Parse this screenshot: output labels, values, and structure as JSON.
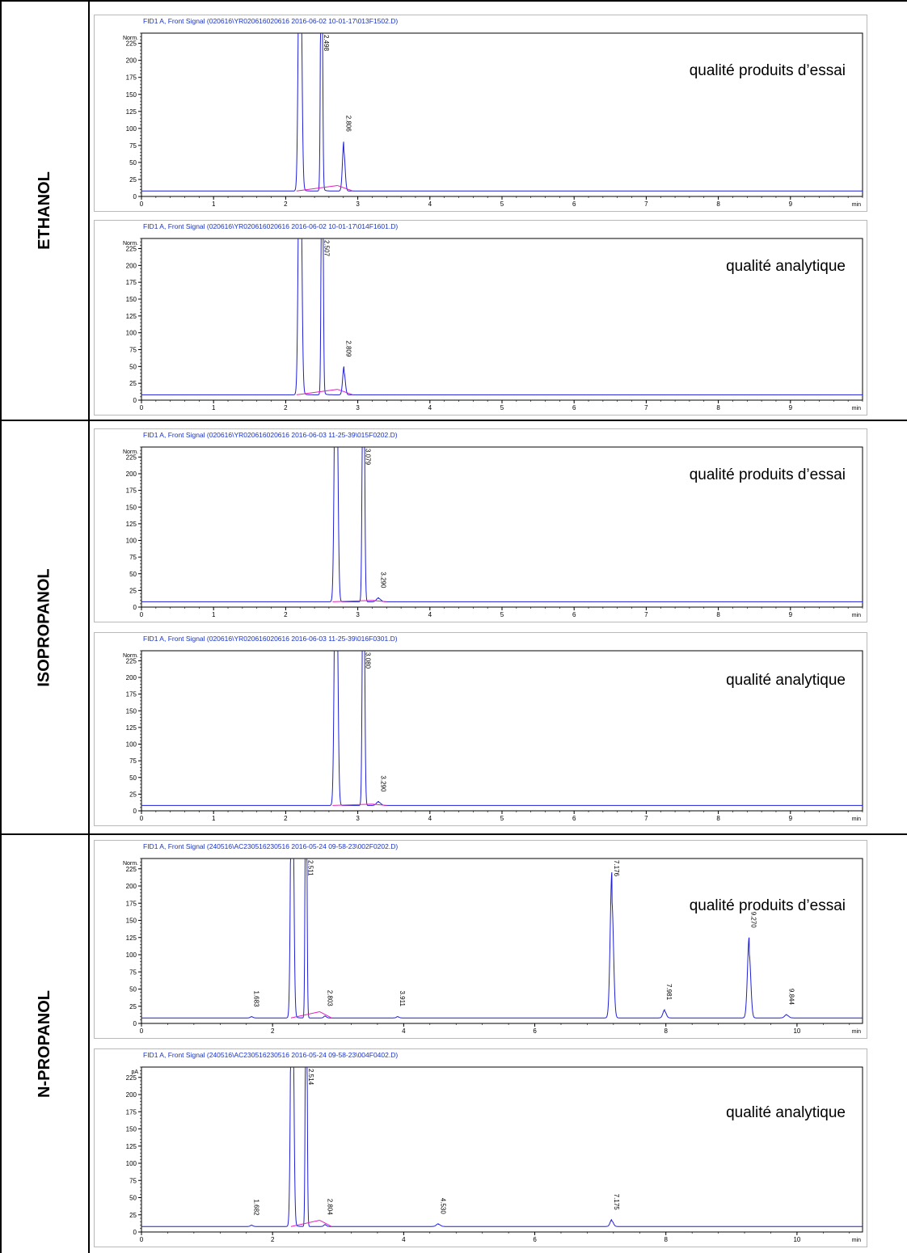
{
  "substances": [
    {
      "label": "ETHANOL"
    },
    {
      "label": "ISOPROPANOL"
    },
    {
      "label": "N-PROPANOL"
    }
  ],
  "colors": {
    "signal": "#1f1fd6",
    "baseline": "#e020c0",
    "title": "#1a33c4",
    "axis": "#000000",
    "frame": "#b9b9b9"
  },
  "chart_data": [
    {
      "type": "line",
      "title": "FID1 A, Front Signal (020616\\YR020616020616 2016-06-02 10-01-17\\013F1502.D)",
      "annotation": "qualité produits d’essai",
      "ylabel": "Norm.",
      "xlabel": "min",
      "xlim": [
        0,
        10
      ],
      "ylim": [
        0,
        240
      ],
      "xticks": [
        0,
        1,
        2,
        3,
        4,
        5,
        6,
        7,
        8,
        9
      ],
      "yticks": [
        0,
        25,
        50,
        75,
        100,
        125,
        150,
        175,
        200,
        225
      ],
      "baseline": 8,
      "peaks": [
        {
          "rt": 2.2,
          "height": 600,
          "width": 0.02,
          "tail": 0.03,
          "label": ""
        },
        {
          "rt": 2.498,
          "height": 600,
          "width": 0.012,
          "tail": 0.025,
          "label": "2.498"
        },
        {
          "rt": 2.806,
          "height": 73,
          "width": 0.018,
          "tail": 0.015,
          "label": "2.806"
        }
      ],
      "integration_baselines": [
        [
          2.15,
          8,
          2.72,
          16
        ],
        [
          2.72,
          16,
          2.93,
          8
        ]
      ]
    },
    {
      "type": "line",
      "title": "FID1 A, Front Signal (020616\\YR020616020616 2016-06-02 10-01-17\\014F1601.D)",
      "annotation": "qualité analytique",
      "ylabel": "Norm.",
      "xlabel": "min",
      "xlim": [
        0,
        10
      ],
      "ylim": [
        0,
        240
      ],
      "xticks": [
        0,
        1,
        2,
        3,
        4,
        5,
        6,
        7,
        8,
        9
      ],
      "yticks": [
        0,
        25,
        50,
        75,
        100,
        125,
        150,
        175,
        200,
        225
      ],
      "baseline": 8,
      "peaks": [
        {
          "rt": 2.2,
          "height": 600,
          "width": 0.02,
          "tail": 0.03,
          "label": ""
        },
        {
          "rt": 2.507,
          "height": 600,
          "width": 0.012,
          "tail": 0.025,
          "label": "2.507"
        },
        {
          "rt": 2.809,
          "height": 42,
          "width": 0.018,
          "tail": 0.015,
          "label": "2.809"
        }
      ],
      "integration_baselines": [
        [
          2.15,
          8,
          2.72,
          16
        ],
        [
          2.72,
          16,
          2.93,
          8
        ]
      ]
    },
    {
      "type": "line",
      "title": "FID1 A, Front Signal (020616\\YR020616020616 2016-06-03 11-25-39\\015F0202.D)",
      "annotation": "qualité produits d’essai",
      "ylabel": "Norm.",
      "xlabel": "min",
      "xlim": [
        0,
        10
      ],
      "ylim": [
        0,
        240
      ],
      "xticks": [
        0,
        1,
        2,
        3,
        4,
        5,
        6,
        7,
        8,
        9
      ],
      "yticks": [
        0,
        25,
        50,
        75,
        100,
        125,
        150,
        175,
        200,
        225
      ],
      "baseline": 8,
      "peaks": [
        {
          "rt": 2.7,
          "height": 600,
          "width": 0.02,
          "tail": 0.02,
          "label": ""
        },
        {
          "rt": 3.079,
          "height": 600,
          "width": 0.014,
          "tail": 0.02,
          "label": "3.079"
        },
        {
          "rt": 3.29,
          "height": 6,
          "width": 0.03,
          "tail": 0.01,
          "label": "3.290"
        }
      ],
      "integration_baselines": [
        [
          2.65,
          8,
          3.2,
          10
        ],
        [
          3.2,
          10,
          3.4,
          8
        ]
      ]
    },
    {
      "type": "line",
      "title": "FID1 A, Front Signal (020616\\YR020616020616 2016-06-03 11-25-39\\016F0301.D)",
      "annotation": "qualité analytique",
      "ylabel": "Norm.",
      "xlabel": "min",
      "xlim": [
        0,
        10
      ],
      "ylim": [
        0,
        240
      ],
      "xticks": [
        0,
        1,
        2,
        3,
        4,
        5,
        6,
        7,
        8,
        9
      ],
      "yticks": [
        0,
        25,
        50,
        75,
        100,
        125,
        150,
        175,
        200,
        225
      ],
      "baseline": 8,
      "peaks": [
        {
          "rt": 2.7,
          "height": 600,
          "width": 0.02,
          "tail": 0.02,
          "label": ""
        },
        {
          "rt": 3.08,
          "height": 600,
          "width": 0.014,
          "tail": 0.02,
          "label": "3.080"
        },
        {
          "rt": 3.29,
          "height": 6,
          "width": 0.03,
          "tail": 0.01,
          "label": "3.290"
        }
      ],
      "integration_baselines": [
        [
          2.65,
          8,
          3.2,
          10
        ],
        [
          3.2,
          10,
          3.4,
          8
        ]
      ]
    },
    {
      "type": "line",
      "title": "FID1 A, Front Signal (240516\\AC230516230516 2016-05-24 09-58-23\\002F0202.D)",
      "annotation": "qualité produits d’essai",
      "ylabel": "Norm.",
      "xlabel": "min",
      "xlim": [
        0,
        11
      ],
      "ylim": [
        0,
        240
      ],
      "xticks": [
        0,
        2,
        4,
        6,
        8,
        10
      ],
      "yticks": [
        0,
        25,
        50,
        75,
        100,
        125,
        150,
        175,
        200,
        225
      ],
      "baseline": 8,
      "peaks": [
        {
          "rt": 1.683,
          "height": 2,
          "width": 0.02,
          "tail": 0.005,
          "label": "1.683"
        },
        {
          "rt": 2.3,
          "height": 600,
          "width": 0.02,
          "tail": 0.03,
          "label": ""
        },
        {
          "rt": 2.511,
          "height": 600,
          "width": 0.012,
          "tail": 0.02,
          "label": "2.511"
        },
        {
          "rt": 2.803,
          "height": 3,
          "width": 0.02,
          "tail": 0.005,
          "label": "2.803"
        },
        {
          "rt": 3.911,
          "height": 2,
          "width": 0.02,
          "tail": 0.005,
          "label": "3.911"
        },
        {
          "rt": 7.176,
          "height": 212,
          "width": 0.025,
          "tail": 0.005,
          "label": "7.176"
        },
        {
          "rt": 7.981,
          "height": 12,
          "width": 0.025,
          "tail": 0.005,
          "label": "7.981"
        },
        {
          "rt": 9.27,
          "height": 117,
          "width": 0.025,
          "tail": 0.005,
          "label": "9.270"
        },
        {
          "rt": 9.844,
          "height": 5,
          "width": 0.03,
          "tail": 0.005,
          "label": "9.844"
        }
      ],
      "integration_baselines": [
        [
          2.28,
          8,
          2.72,
          17
        ],
        [
          2.72,
          17,
          2.9,
          8
        ]
      ]
    },
    {
      "type": "line",
      "title": "FID1 A, Front Signal (240516\\AC230516230516 2016-05-24 09-58-23\\004F0402.D)",
      "annotation": "qualité analytique",
      "ylabel": "pA",
      "xlabel": "min",
      "xlim": [
        0,
        11
      ],
      "ylim": [
        0,
        240
      ],
      "xticks": [
        0,
        2,
        4,
        6,
        8,
        10
      ],
      "yticks": [
        0,
        25,
        50,
        75,
        100,
        125,
        150,
        175,
        200,
        225
      ],
      "baseline": 8,
      "peaks": [
        {
          "rt": 1.682,
          "height": 2,
          "width": 0.02,
          "tail": 0.005,
          "label": "1.682"
        },
        {
          "rt": 2.3,
          "height": 600,
          "width": 0.02,
          "tail": 0.03,
          "label": ""
        },
        {
          "rt": 2.514,
          "height": 600,
          "width": 0.012,
          "tail": 0.02,
          "label": "2.514"
        },
        {
          "rt": 2.804,
          "height": 3,
          "width": 0.02,
          "tail": 0.005,
          "label": "2.804"
        },
        {
          "rt": 4.53,
          "height": 4,
          "width": 0.03,
          "tail": 0.005,
          "label": "4.530"
        },
        {
          "rt": 7.175,
          "height": 10,
          "width": 0.025,
          "tail": 0.005,
          "label": "7.175"
        }
      ],
      "integration_baselines": [
        [
          2.28,
          8,
          2.72,
          17
        ],
        [
          2.72,
          17,
          2.9,
          8
        ]
      ]
    }
  ]
}
